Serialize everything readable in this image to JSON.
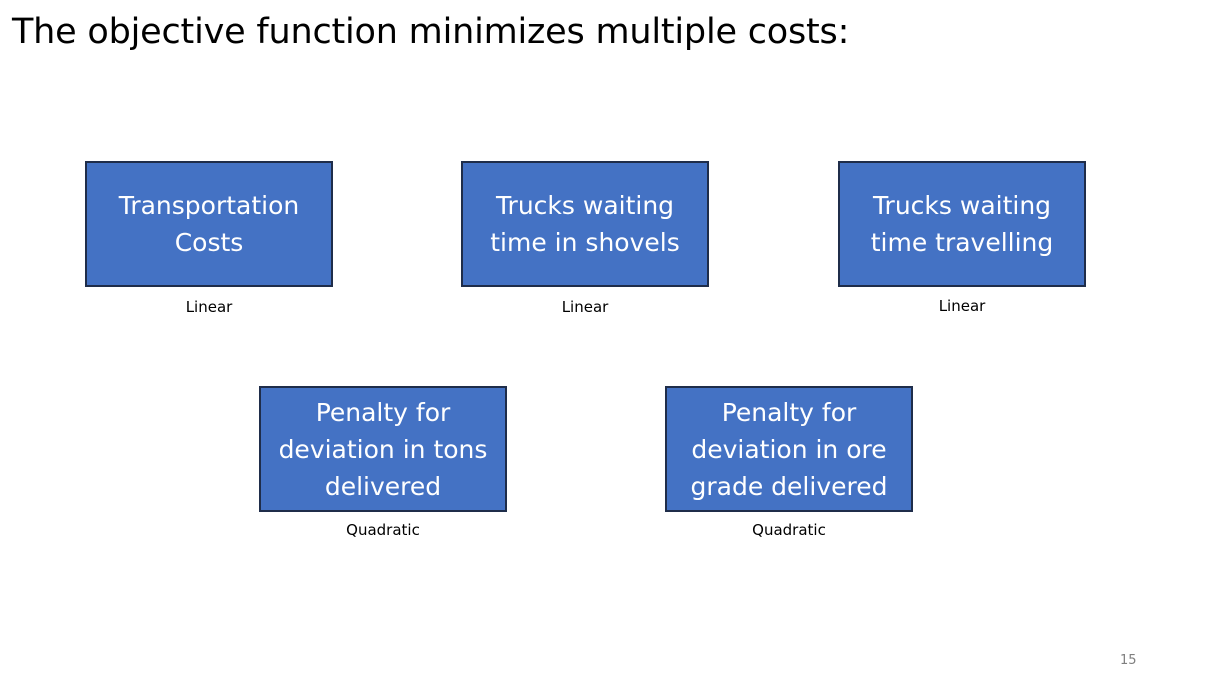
{
  "slide": {
    "title": "The objective function minimizes multiple costs:",
    "page_number": "15"
  },
  "costs": [
    {
      "label": "Transportation Costs",
      "type": "Linear"
    },
    {
      "label": "Trucks waiting time in shovels",
      "type": "Linear"
    },
    {
      "label": "Trucks waiting time travelling",
      "type": "Linear"
    },
    {
      "label": "Penalty for deviation in tons delivered",
      "type": "Quadratic"
    },
    {
      "label": "Penalty for deviation in ore grade delivered",
      "type": "Quadratic"
    }
  ],
  "colors": {
    "box_fill": "#4472c4",
    "box_border": "#1f2d4a",
    "box_text": "#ffffff"
  }
}
